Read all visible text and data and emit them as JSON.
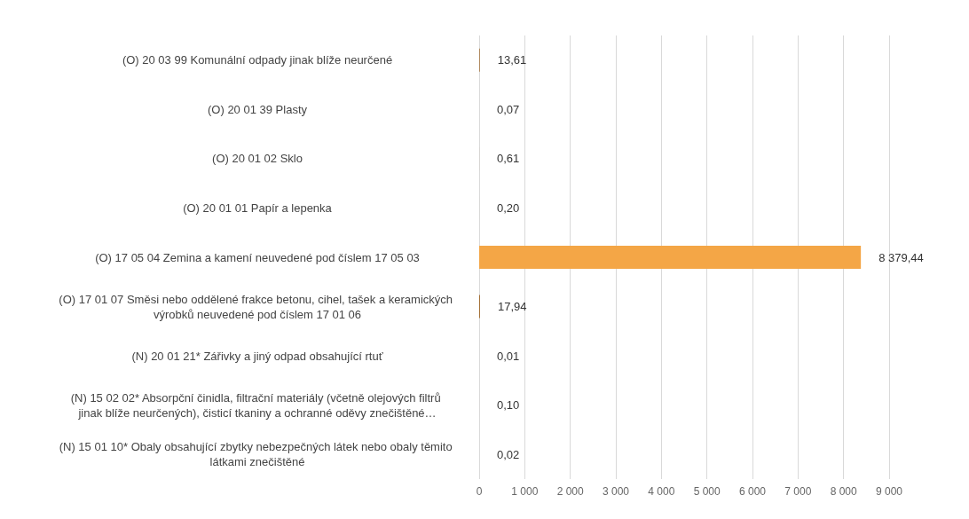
{
  "chart_data": {
    "type": "bar",
    "orientation": "horizontal",
    "categories": [
      "(O) 20 03 99 Komunální odpady jinak blíže neurčené",
      "(O) 20 01 39 Plasty",
      "(O) 20 01 02 Sklo",
      "(O) 20 01 01 Papír a lepenka",
      "(O) 17 05 04 Zemina a kamení neuvedené pod číslem 17 05 03",
      "(O) 17 01 07 Směsi nebo oddělené frakce betonu, cihel, tašek a keramických výrobků neuvedené pod číslem 17 01 06",
      "(N) 20 01 21* Zářivky a jiný odpad obsahující rtuť",
      "(N) 15 02 02* Absorpční činidla, filtrační materiály (včetně olejových filtrů jinak blíže neurčených), čisticí tkaniny a ochranné oděvy znečištěné…",
      "(N) 15 01 10* Obaly obsahující zbytky nebezpečných látek nebo obaly těmito látkami znečištěné"
    ],
    "values": [
      13.61,
      0.07,
      0.61,
      0.2,
      8379.44,
      17.94,
      0.01,
      0.1,
      0.02
    ],
    "value_labels": [
      "13,61",
      "0,07",
      "0,61",
      "0,20",
      "8 379,44",
      "17,94",
      "0,01",
      "0,10",
      "0,02"
    ],
    "colors": [
      "#a0682a",
      "#a0682a",
      "#a0682a",
      "#a0682a",
      "#f4a646",
      "#a0682a",
      "#a0682a",
      "#a0682a",
      "#a0682a"
    ],
    "xlim": [
      0,
      9000
    ],
    "xticks": [
      0,
      {
        "value": 1000,
        "label": "1 000"
      },
      {
        "value": 2000,
        "label": "2 000"
      },
      {
        "value": 3000,
        "label": "3 000"
      },
      {
        "value": 4000,
        "label": "4 000"
      },
      {
        "value": 5000,
        "label": "5 000"
      },
      {
        "value": 6000,
        "label": "6 000"
      },
      {
        "value": 7000,
        "label": "7 000"
      },
      {
        "value": 8000,
        "label": "8 000"
      },
      {
        "value": 9000,
        "label": "9 000"
      }
    ],
    "grid": "x"
  }
}
